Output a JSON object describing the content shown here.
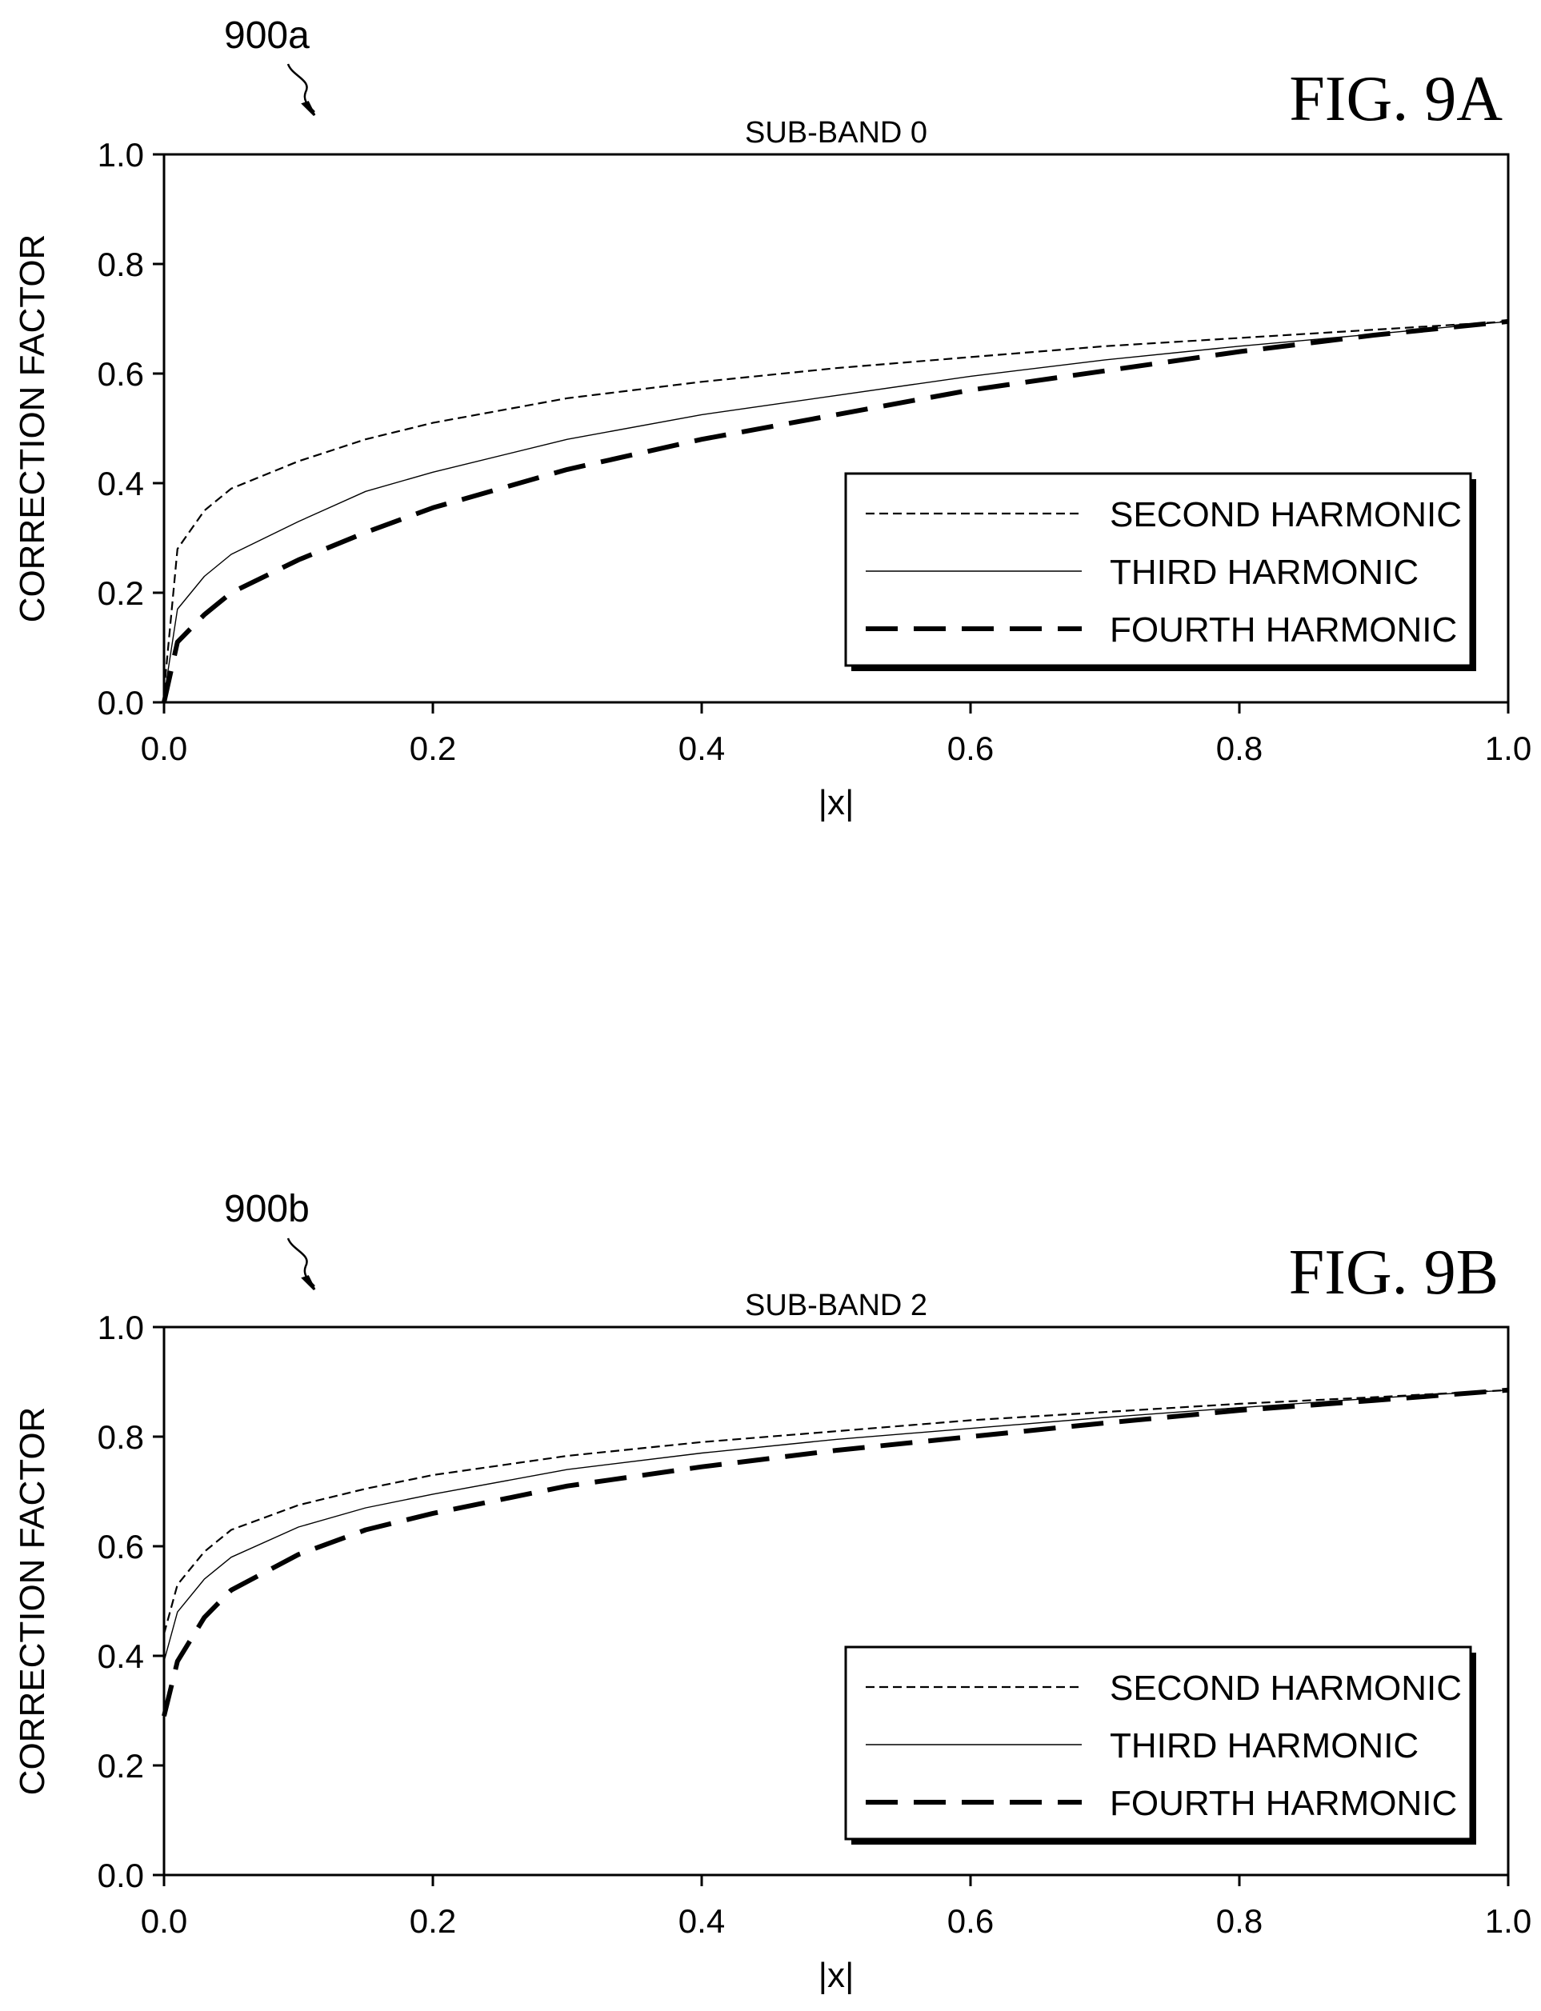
{
  "chart_data": [
    {
      "type": "line",
      "figure_label": "FIG. 9A",
      "reference_numeral": "900a",
      "title": "SUB-BAND 0",
      "xlabel": "|x|",
      "ylabel": "CORRECTION FACTOR",
      "xlim": [
        0,
        1
      ],
      "ylim": [
        0,
        1
      ],
      "x_ticks": [
        "0.0",
        "0.2",
        "0.4",
        "0.6",
        "0.8",
        "1.0"
      ],
      "y_ticks": [
        "0.0",
        "0.2",
        "0.4",
        "0.6",
        "0.8",
        "1.0"
      ],
      "grid": false,
      "legend": "inside-right",
      "x": [
        0,
        0.01,
        0.03,
        0.05,
        0.1,
        0.15,
        0.2,
        0.3,
        0.4,
        0.5,
        0.6,
        0.7,
        0.8,
        0.9,
        1.0
      ],
      "series": [
        {
          "name": "SECOND HARMONIC",
          "style": "dashed",
          "values": [
            0.02,
            0.28,
            0.35,
            0.39,
            0.44,
            0.48,
            0.51,
            0.555,
            0.585,
            0.61,
            0.63,
            0.65,
            0.665,
            0.68,
            0.695
          ]
        },
        {
          "name": "THIRD HARMONIC",
          "style": "solid",
          "values": [
            0.01,
            0.17,
            0.23,
            0.27,
            0.33,
            0.385,
            0.42,
            0.48,
            0.525,
            0.56,
            0.595,
            0.625,
            0.65,
            0.672,
            0.695
          ]
        },
        {
          "name": "FOURTH HARMONIC",
          "style": "long-dash",
          "values": [
            0.0,
            0.11,
            0.16,
            0.2,
            0.26,
            0.31,
            0.355,
            0.425,
            0.48,
            0.525,
            0.57,
            0.605,
            0.64,
            0.67,
            0.695
          ]
        }
      ]
    },
    {
      "type": "line",
      "figure_label": "FIG. 9B",
      "reference_numeral": "900b",
      "title": "SUB-BAND 2",
      "xlabel": "|x|",
      "ylabel": "CORRECTION FACTOR",
      "xlim": [
        0,
        1
      ],
      "ylim": [
        0,
        1
      ],
      "x_ticks": [
        "0.0",
        "0.2",
        "0.4",
        "0.6",
        "0.8",
        "1.0"
      ],
      "y_ticks": [
        "0.0",
        "0.2",
        "0.4",
        "0.6",
        "0.8",
        "1.0"
      ],
      "grid": false,
      "legend": "inside-right",
      "x": [
        0,
        0.01,
        0.03,
        0.05,
        0.1,
        0.15,
        0.2,
        0.3,
        0.4,
        0.5,
        0.6,
        0.7,
        0.8,
        0.9,
        1.0
      ],
      "series": [
        {
          "name": "SECOND HARMONIC",
          "style": "dashed",
          "values": [
            0.44,
            0.53,
            0.59,
            0.63,
            0.675,
            0.705,
            0.73,
            0.765,
            0.79,
            0.81,
            0.83,
            0.845,
            0.86,
            0.872,
            0.885
          ]
        },
        {
          "name": "THIRD HARMONIC",
          "style": "solid",
          "values": [
            0.39,
            0.48,
            0.54,
            0.58,
            0.635,
            0.67,
            0.695,
            0.74,
            0.77,
            0.795,
            0.815,
            0.835,
            0.853,
            0.87,
            0.885
          ]
        },
        {
          "name": "FOURTH HARMONIC",
          "style": "long-dash",
          "values": [
            0.29,
            0.39,
            0.47,
            0.52,
            0.585,
            0.63,
            0.66,
            0.71,
            0.745,
            0.775,
            0.8,
            0.825,
            0.848,
            0.866,
            0.885
          ]
        }
      ]
    }
  ]
}
